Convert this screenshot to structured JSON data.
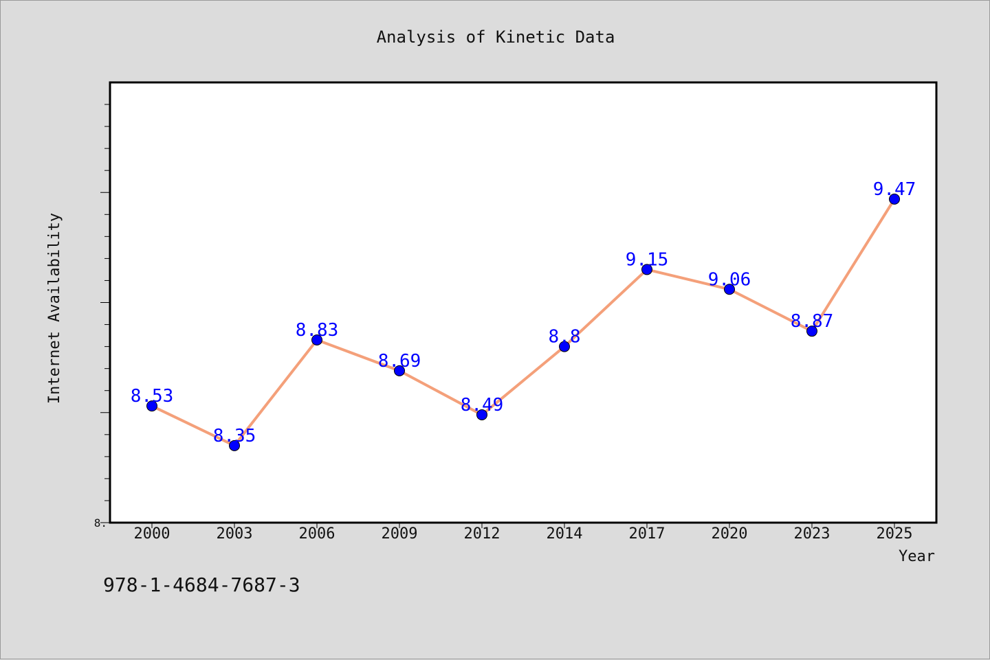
{
  "chart_data": {
    "type": "line",
    "title": "Analysis of Kinetic Data",
    "xlabel": "Year",
    "ylabel": "Internet Availability",
    "categories": [
      "2000",
      "2003",
      "2006",
      "2009",
      "2012",
      "2014",
      "2017",
      "2020",
      "2023",
      "2025"
    ],
    "series": [
      {
        "values": [
          8.53,
          8.35,
          8.83,
          8.69,
          8.49,
          8.8,
          9.15,
          9.06,
          8.87,
          9.47
        ]
      }
    ],
    "data_labels": [
      "8.53",
      "8.35",
      "8.83",
      "8.69",
      "8.49",
      "8.8",
      "9.15",
      "9.06",
      "8.87",
      "9.47"
    ],
    "ylim": [
      8.0,
      10.0
    ],
    "y_tick_labels": [
      "8."
    ],
    "grid": false,
    "line_color": "#f4a07a",
    "marker_color": "#0000ff",
    "label_color": "#0000ff"
  },
  "footer": {
    "isbn": "978-1-4684-7687-3"
  }
}
